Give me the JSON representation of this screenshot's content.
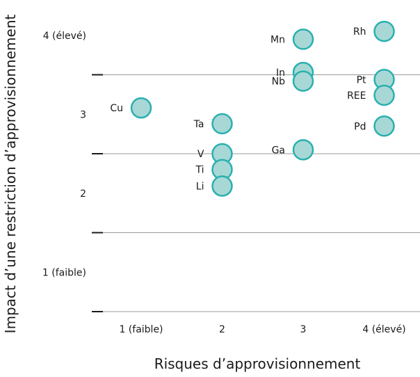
{
  "chart_data": {
    "type": "scatter",
    "title": "",
    "xlabel": "Risques d’approvisionnement",
    "ylabel": "Impact d’une restriction d’approvisionnement",
    "x_ticks": [
      "1 (faible)",
      "2",
      "3",
      "4 (élevé)"
    ],
    "y_ticks": [
      "1 (faible)",
      "2",
      "3",
      "4 (élevé)"
    ],
    "xlim": [
      0.5,
      4.5
    ],
    "ylim": [
      0.5,
      4.5
    ],
    "grid": "horizontal",
    "points": [
      {
        "label": "Cu",
        "x": 1.0,
        "y": 3.08
      },
      {
        "label": "Ta",
        "x": 2.0,
        "y": 2.88
      },
      {
        "label": "V",
        "x": 2.0,
        "y": 2.5
      },
      {
        "label": "Ti",
        "x": 2.0,
        "y": 2.3
      },
      {
        "label": "Li",
        "x": 2.0,
        "y": 2.09
      },
      {
        "label": "Mn",
        "x": 3.0,
        "y": 3.95
      },
      {
        "label": "In",
        "x": 3.0,
        "y": 3.53
      },
      {
        "label": "Nb",
        "x": 3.0,
        "y": 3.42
      },
      {
        "label": "Ga",
        "x": 3.0,
        "y": 2.55
      },
      {
        "label": "Rh",
        "x": 4.0,
        "y": 4.05
      },
      {
        "label": "Pt",
        "x": 4.0,
        "y": 3.44
      },
      {
        "label": "REE",
        "x": 4.0,
        "y": 3.24
      },
      {
        "label": "Pd",
        "x": 4.0,
        "y": 2.85
      }
    ]
  },
  "colors": {
    "marker_fill": "#a8d8d5",
    "marker_stroke": "#2ab0b0",
    "gridline": "#9a9a9a",
    "tick_mark": "#1a1a1a",
    "text": "#1a1a1a"
  }
}
